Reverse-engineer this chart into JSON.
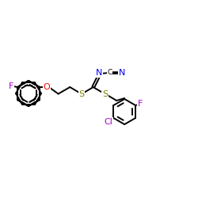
{
  "bg_color": "#ffffff",
  "bond_color": "#000000",
  "colors": {
    "N": "#0000ee",
    "O": "#ff0000",
    "S": "#808000",
    "F": "#aa00cc",
    "Cl": "#aa00cc"
  },
  "lw": 1.4,
  "figsize": [
    2.5,
    2.5
  ],
  "dpi": 100,
  "xlim": [
    0,
    250
  ],
  "ylim": [
    0,
    250
  ]
}
